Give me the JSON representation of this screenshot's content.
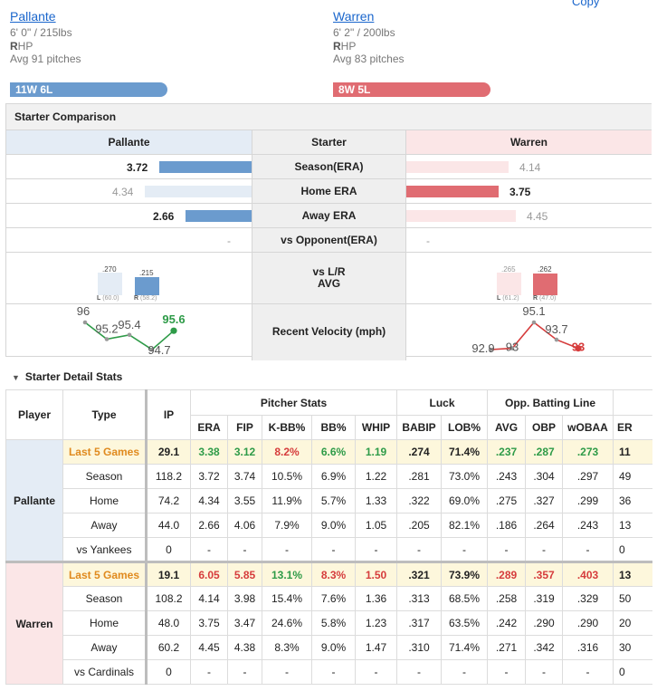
{
  "header": {
    "top_link": "Copy"
  },
  "pitchers": [
    {
      "name": "Pallante",
      "size": "6' 0\" / 215lbs",
      "hand_letter": "R",
      "hand_rest": "HP",
      "avg_pitches": "Avg 91 pitches",
      "record": "11W 6L"
    },
    {
      "name": "Warren",
      "size": "6' 2\" / 200lbs",
      "hand_letter": "R",
      "hand_rest": "HP",
      "avg_pitches": "Avg 83 pitches",
      "record": "8W 5L"
    }
  ],
  "comparison": {
    "title": "Starter Comparison",
    "col_left": "Pallante",
    "col_mid": "Starter",
    "col_right": "Warren",
    "rows": [
      {
        "label": "Season(ERA)",
        "left": "3.72",
        "right": "4.14"
      },
      {
        "label": "Home ERA",
        "left": "4.34",
        "right": "3.75"
      },
      {
        "label": "Away ERA",
        "left": "2.66",
        "right": "4.45"
      },
      {
        "label": "vs Opponent(ERA)",
        "left": "-",
        "right": "-"
      }
    ],
    "lr_label_1": "vs L/R",
    "lr_label_2": "AVG",
    "lr_left": {
      "l_avg": ".270",
      "r_avg": ".215",
      "l_sub": "L",
      "l_pct": "(60.0)",
      "r_sub": "R",
      "r_pct": "(58.2)",
      "l_frac": 0.7,
      "r_frac": 0.56
    },
    "lr_right": {
      "l_avg": ".265",
      "r_avg": ".262",
      "l_sub": "L",
      "l_pct": "(61.2)",
      "r_sub": "R",
      "r_pct": "(47.0)",
      "l_frac": 0.69,
      "r_frac": 0.68
    },
    "velocity_label": "Recent Velocity (mph)",
    "velocity_left": [
      "96",
      "95.2",
      "95.4",
      "94.7",
      "95.6"
    ],
    "velocity_right": [
      "92.9",
      "93",
      "95.1",
      "93.7",
      "93"
    ]
  },
  "detail": {
    "title": "Starter Detail Stats",
    "groups": {
      "pitcher": "Pitcher Stats",
      "luck": "Luck",
      "opp": "Opp. Batting Line"
    },
    "headers": {
      "player": "Player",
      "type": "Type",
      "ip": "IP",
      "era": "ERA",
      "fip": "FIP",
      "kbb": "K-BB%",
      "bb": "BB%",
      "whip": "WHIP",
      "babip": "BABIP",
      "lob": "LOB%",
      "avg": "AVG",
      "obp": "OBP",
      "woba": "wOBAA",
      "er": "ER"
    },
    "players": [
      {
        "name": "Pallante",
        "rows": [
          {
            "type": "Last 5 Games",
            "ip": "29.1",
            "era": "3.38",
            "fip": "3.12",
            "kbb": "8.2%",
            "bb": "6.6%",
            "whip": "1.19",
            "babip": ".274",
            "lob": "71.4%",
            "avg": ".237",
            "obp": ".287",
            "woba": ".273",
            "er": "11"
          },
          {
            "type": "Season",
            "ip": "118.2",
            "era": "3.72",
            "fip": "3.74",
            "kbb": "10.5%",
            "bb": "6.9%",
            "whip": "1.22",
            "babip": ".281",
            "lob": "73.0%",
            "avg": ".243",
            "obp": ".304",
            "woba": ".297",
            "er": "49"
          },
          {
            "type": "Home",
            "ip": "74.2",
            "era": "4.34",
            "fip": "3.55",
            "kbb": "11.9%",
            "bb": "5.7%",
            "whip": "1.33",
            "babip": ".322",
            "lob": "69.0%",
            "avg": ".275",
            "obp": ".327",
            "woba": ".299",
            "er": "36"
          },
          {
            "type": "Away",
            "ip": "44.0",
            "era": "2.66",
            "fip": "4.06",
            "kbb": "7.9%",
            "bb": "9.0%",
            "whip": "1.05",
            "babip": ".205",
            "lob": "82.1%",
            "avg": ".186",
            "obp": ".264",
            "woba": ".243",
            "er": "13"
          },
          {
            "type": "vs Yankees",
            "ip": "0",
            "era": "-",
            "fip": "-",
            "kbb": "-",
            "bb": "-",
            "whip": "-",
            "babip": "-",
            "lob": "-",
            "avg": "-",
            "obp": "-",
            "woba": "-",
            "er": "0"
          }
        ]
      },
      {
        "name": "Warren",
        "rows": [
          {
            "type": "Last 5 Games",
            "ip": "19.1",
            "era": "6.05",
            "fip": "5.85",
            "kbb": "13.1%",
            "bb": "8.3%",
            "whip": "1.50",
            "babip": ".321",
            "lob": "73.9%",
            "avg": ".289",
            "obp": ".357",
            "woba": ".403",
            "er": "13"
          },
          {
            "type": "Season",
            "ip": "108.2",
            "era": "4.14",
            "fip": "3.98",
            "kbb": "15.4%",
            "bb": "7.6%",
            "whip": "1.36",
            "babip": ".313",
            "lob": "68.5%",
            "avg": ".258",
            "obp": ".319",
            "woba": ".329",
            "er": "50"
          },
          {
            "type": "Home",
            "ip": "48.0",
            "era": "3.75",
            "fip": "3.47",
            "kbb": "24.6%",
            "bb": "5.8%",
            "whip": "1.23",
            "babip": ".317",
            "lob": "63.5%",
            "avg": ".242",
            "obp": ".290",
            "woba": ".290",
            "er": "20"
          },
          {
            "type": "Away",
            "ip": "60.2",
            "era": "4.45",
            "fip": "4.38",
            "kbb": "8.3%",
            "bb": "9.0%",
            "whip": "1.47",
            "babip": ".310",
            "lob": "71.4%",
            "avg": ".271",
            "obp": ".342",
            "woba": ".316",
            "er": "30"
          },
          {
            "type": "vs Cardinals",
            "ip": "0",
            "era": "-",
            "fip": "-",
            "kbb": "-",
            "bb": "-",
            "whip": "-",
            "babip": "-",
            "lob": "-",
            "avg": "-",
            "obp": "-",
            "woba": "-",
            "er": "0"
          }
        ]
      }
    ]
  },
  "colors": {
    "blue_bar": "#6b9bce",
    "blue_light": "#e4ecf5",
    "red_bar": "#e06c72",
    "red_light": "#fbe6e7",
    "green": "#2e9b48",
    "red": "#d63c3c",
    "orange": "#e08a1e"
  }
}
